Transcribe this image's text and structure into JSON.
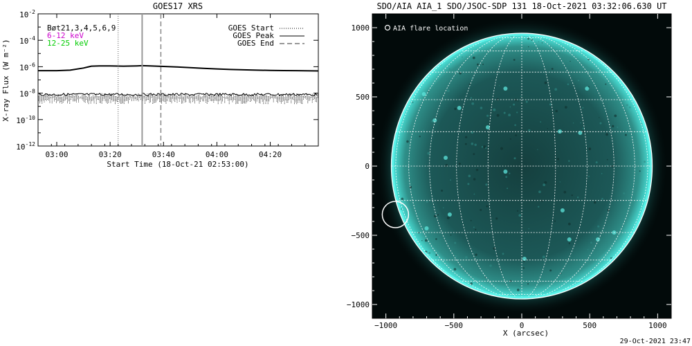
{
  "footer_timestamp": "29-Oct-2021 23:47",
  "chart_data": [
    {
      "type": "line",
      "title": "GOES17 XRS",
      "xlabel": "Start Time (18-Oct-21 02:53:00)",
      "ylabel": "X-ray Flux (W m⁻²)",
      "yscale": "log",
      "xlim": [
        "02:53",
        "04:38"
      ],
      "ylim": [
        1e-12,
        0.01
      ],
      "x_tick_labels": [
        "03:00",
        "03:20",
        "03:40",
        "04:00",
        "04:20"
      ],
      "y_tick_labels": [
        {
          "base": "10",
          "exp": "-2"
        },
        {
          "base": "10",
          "exp": "-4"
        },
        {
          "base": "10",
          "exp": "-6"
        },
        {
          "base": "10",
          "exp": "-8"
        },
        {
          "base": "10",
          "exp": "-10"
        },
        {
          "base": "10",
          "exp": "-12"
        }
      ],
      "legend_left": [
        {
          "text": "Bøt21,3,4,5,6,9",
          "color": "#000000"
        },
        {
          "text": "6-12 keV",
          "color": "#cc00cc"
        },
        {
          "text": "12-25 keV",
          "color": "#00cc00"
        }
      ],
      "legend_right": [
        {
          "text": "GOES Start",
          "style": "dotted"
        },
        {
          "text": "GOES Peak",
          "style": "solid"
        },
        {
          "text": "GOES End",
          "style": "dashed"
        }
      ],
      "events": {
        "start": "03:23",
        "peak": "03:32",
        "end": "03:39"
      },
      "series": [
        {
          "x": [
            "02:53",
            "03:00",
            "03:05",
            "03:10",
            "03:13",
            "03:16",
            "03:20",
            "03:25",
            "03:30",
            "03:32",
            "03:35",
            "03:40",
            "03:45",
            "03:50",
            "03:55",
            "04:00",
            "04:05",
            "04:10",
            "04:15",
            "04:20",
            "04:25",
            "04:30",
            "04:38"
          ],
          "values": [
            5e-07,
            5e-07,
            5.5e-07,
            8e-07,
            1.1e-06,
            1.15e-06,
            1.15e-06,
            1.1e-06,
            1.15e-06,
            1.2e-06,
            1.15e-06,
            1.05e-06,
            9.5e-07,
            8.5e-07,
            7.5e-07,
            6.8e-07,
            6.2e-07,
            5.8e-07,
            5.5e-07,
            5.3e-07,
            5.1e-07,
            5e-07,
            4.8e-07
          ]
        },
        {
          "noise_band": [
            1.5e-09,
            1e-08
          ]
        }
      ]
    },
    {
      "type": "image",
      "title": "SDO/AIA AIA_1 SDO/JSOC-SDP 131 18-Oct-2021 03:32:06.630 UT",
      "xlabel": "X (arcsec)",
      "xlim": [
        -1100,
        1100
      ],
      "ylim": [
        -1100,
        1100
      ],
      "x_tick_labels": [
        "−1000",
        "−500",
        "0",
        "500",
        "1000"
      ],
      "y_tick_labels": [
        "1000",
        "500",
        "0",
        "−500",
        "−1000"
      ],
      "legend": "AIA flare location",
      "solar_radius_arcsec": 960,
      "flare_location": {
        "x": -930,
        "y": -350
      },
      "colors": {
        "disk": "#1f5f5e",
        "limb": "#4ff0e6",
        "background": "#020a0a"
      }
    }
  ]
}
